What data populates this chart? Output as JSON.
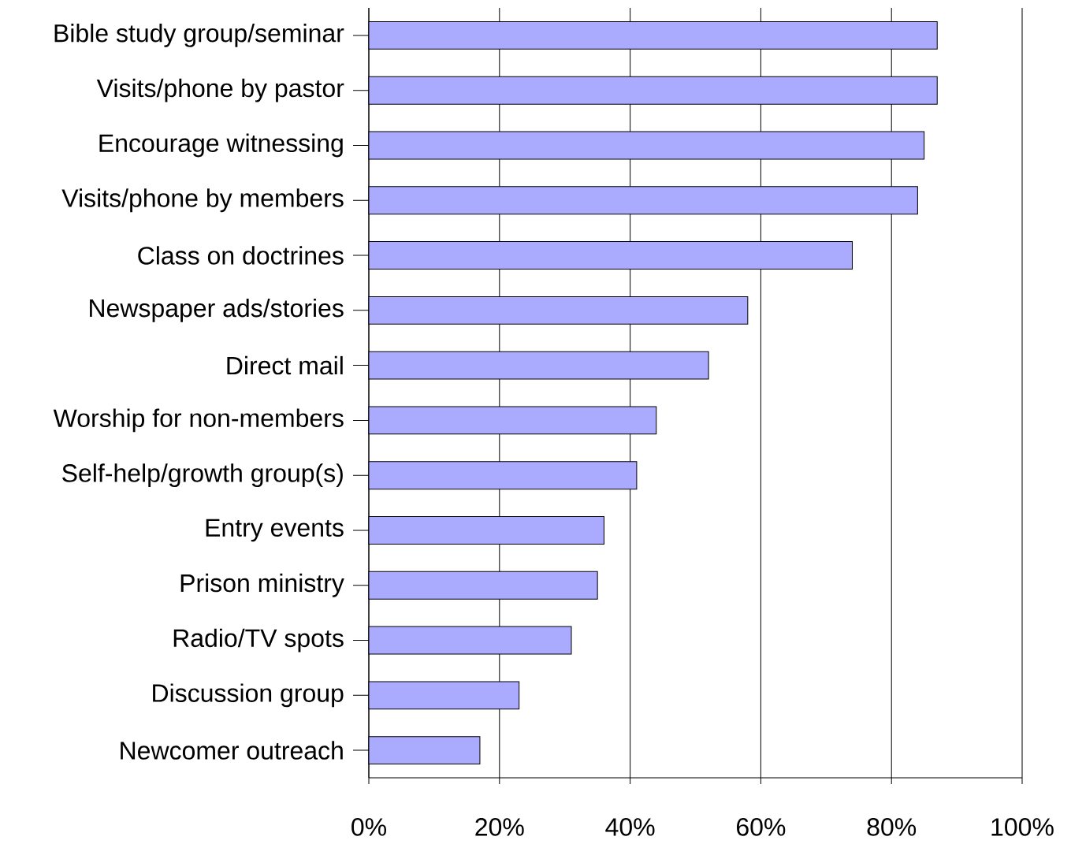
{
  "chart_data": {
    "type": "bar",
    "orientation": "horizontal",
    "categories": [
      "Bible study group/seminar",
      "Visits/phone by pastor",
      "Encourage witnessing",
      "Visits/phone by members",
      "Class on doctrines",
      "Newspaper ads/stories",
      "Direct mail",
      "Worship for non-members",
      "Self-help/growth group(s)",
      "Entry events",
      "Prison ministry",
      "Radio/TV spots",
      "Discussion group",
      "Newcomer outreach"
    ],
    "values": [
      87,
      87,
      85,
      84,
      74,
      58,
      52,
      44,
      41,
      36,
      35,
      31,
      23,
      17
    ],
    "color": "#aaaaff",
    "xlim": [
      0,
      100
    ],
    "xticks": [
      {
        "value": 0,
        "label": "0%"
      },
      {
        "value": 20,
        "label": "20%"
      },
      {
        "value": 40,
        "label": "40%"
      },
      {
        "value": 60,
        "label": "60%"
      },
      {
        "value": 80,
        "label": "80%"
      },
      {
        "value": 100,
        "label": "100%"
      }
    ],
    "grid": "x"
  }
}
